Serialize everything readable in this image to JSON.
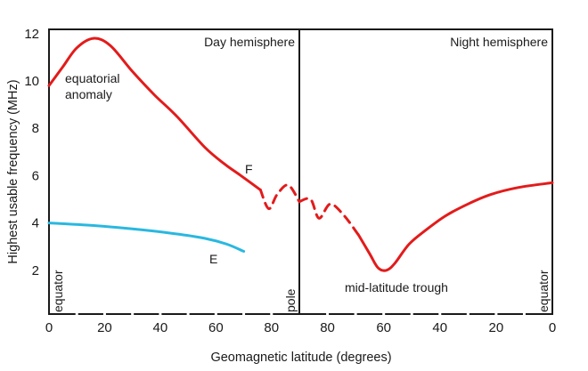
{
  "chart_data": {
    "type": "line",
    "title": "",
    "xlabel": "Geomagnetic latitude (degrees)",
    "ylabel": "Highest usable frequency (MHz)",
    "ylim": [
      0,
      12.5
    ],
    "y_ticks": [
      2,
      4,
      6,
      8,
      10,
      12
    ],
    "x_ticks_day": [
      0,
      20,
      40,
      60,
      80
    ],
    "x_ticks_night": [
      80,
      60,
      40,
      20,
      0
    ],
    "xlim_day": [
      0,
      90
    ],
    "xlim_night": [
      90,
      0
    ],
    "grid": false,
    "panels": [
      {
        "name": "day",
        "label": "Day hemisphere"
      },
      {
        "name": "night",
        "label": "Night hemisphere"
      }
    ],
    "series": [
      {
        "name": "F",
        "panel": "day",
        "color": "#e31b1b",
        "style": "solid",
        "points": [
          [
            0,
            9.8
          ],
          [
            5,
            10.6
          ],
          [
            10,
            11.4
          ],
          [
            16,
            11.8
          ],
          [
            22,
            11.5
          ],
          [
            30,
            10.4
          ],
          [
            38,
            9.4
          ],
          [
            46,
            8.5
          ],
          [
            56,
            7.2
          ],
          [
            63,
            6.5
          ],
          [
            69,
            6.0
          ],
          [
            76,
            5.4
          ]
        ]
      },
      {
        "name": "F-polar-day",
        "panel": "day",
        "color": "#e31b1b",
        "style": "dashed",
        "points": [
          [
            76,
            5.4
          ],
          [
            79,
            4.6
          ],
          [
            82,
            5.2
          ],
          [
            86,
            5.6
          ],
          [
            90,
            4.9
          ]
        ]
      },
      {
        "name": "F-polar-night",
        "panel": "night",
        "color": "#e31b1b",
        "style": "dashed",
        "points": [
          [
            90,
            4.9
          ],
          [
            86,
            5.0
          ],
          [
            83,
            4.2
          ],
          [
            79,
            4.8
          ],
          [
            74,
            4.3
          ],
          [
            69,
            3.5
          ]
        ]
      },
      {
        "name": "F-night",
        "panel": "night",
        "color": "#e31b1b",
        "style": "solid",
        "points": [
          [
            69,
            3.5
          ],
          [
            65,
            2.7
          ],
          [
            62,
            2.1
          ],
          [
            59,
            2.0
          ],
          [
            56,
            2.3
          ],
          [
            51,
            3.1
          ],
          [
            45,
            3.7
          ],
          [
            38,
            4.3
          ],
          [
            30,
            4.8
          ],
          [
            22,
            5.2
          ],
          [
            12,
            5.5
          ],
          [
            0,
            5.7
          ]
        ]
      },
      {
        "name": "E",
        "panel": "day",
        "color": "#29b8e0",
        "style": "solid",
        "points": [
          [
            0,
            4.0
          ],
          [
            15,
            3.9
          ],
          [
            30,
            3.75
          ],
          [
            45,
            3.55
          ],
          [
            56,
            3.35
          ],
          [
            64,
            3.1
          ],
          [
            70,
            2.8
          ]
        ]
      }
    ],
    "annotations": {
      "equatorial_anomaly": "equatorial\nanomaly",
      "equatorial_line1": "equatorial",
      "equatorial_line2": "anomaly",
      "f_label": "F",
      "e_label": "E",
      "trough": "mid-latitude trough",
      "equator_left": "equator",
      "pole": "pole",
      "equator_right": "equator"
    }
  }
}
